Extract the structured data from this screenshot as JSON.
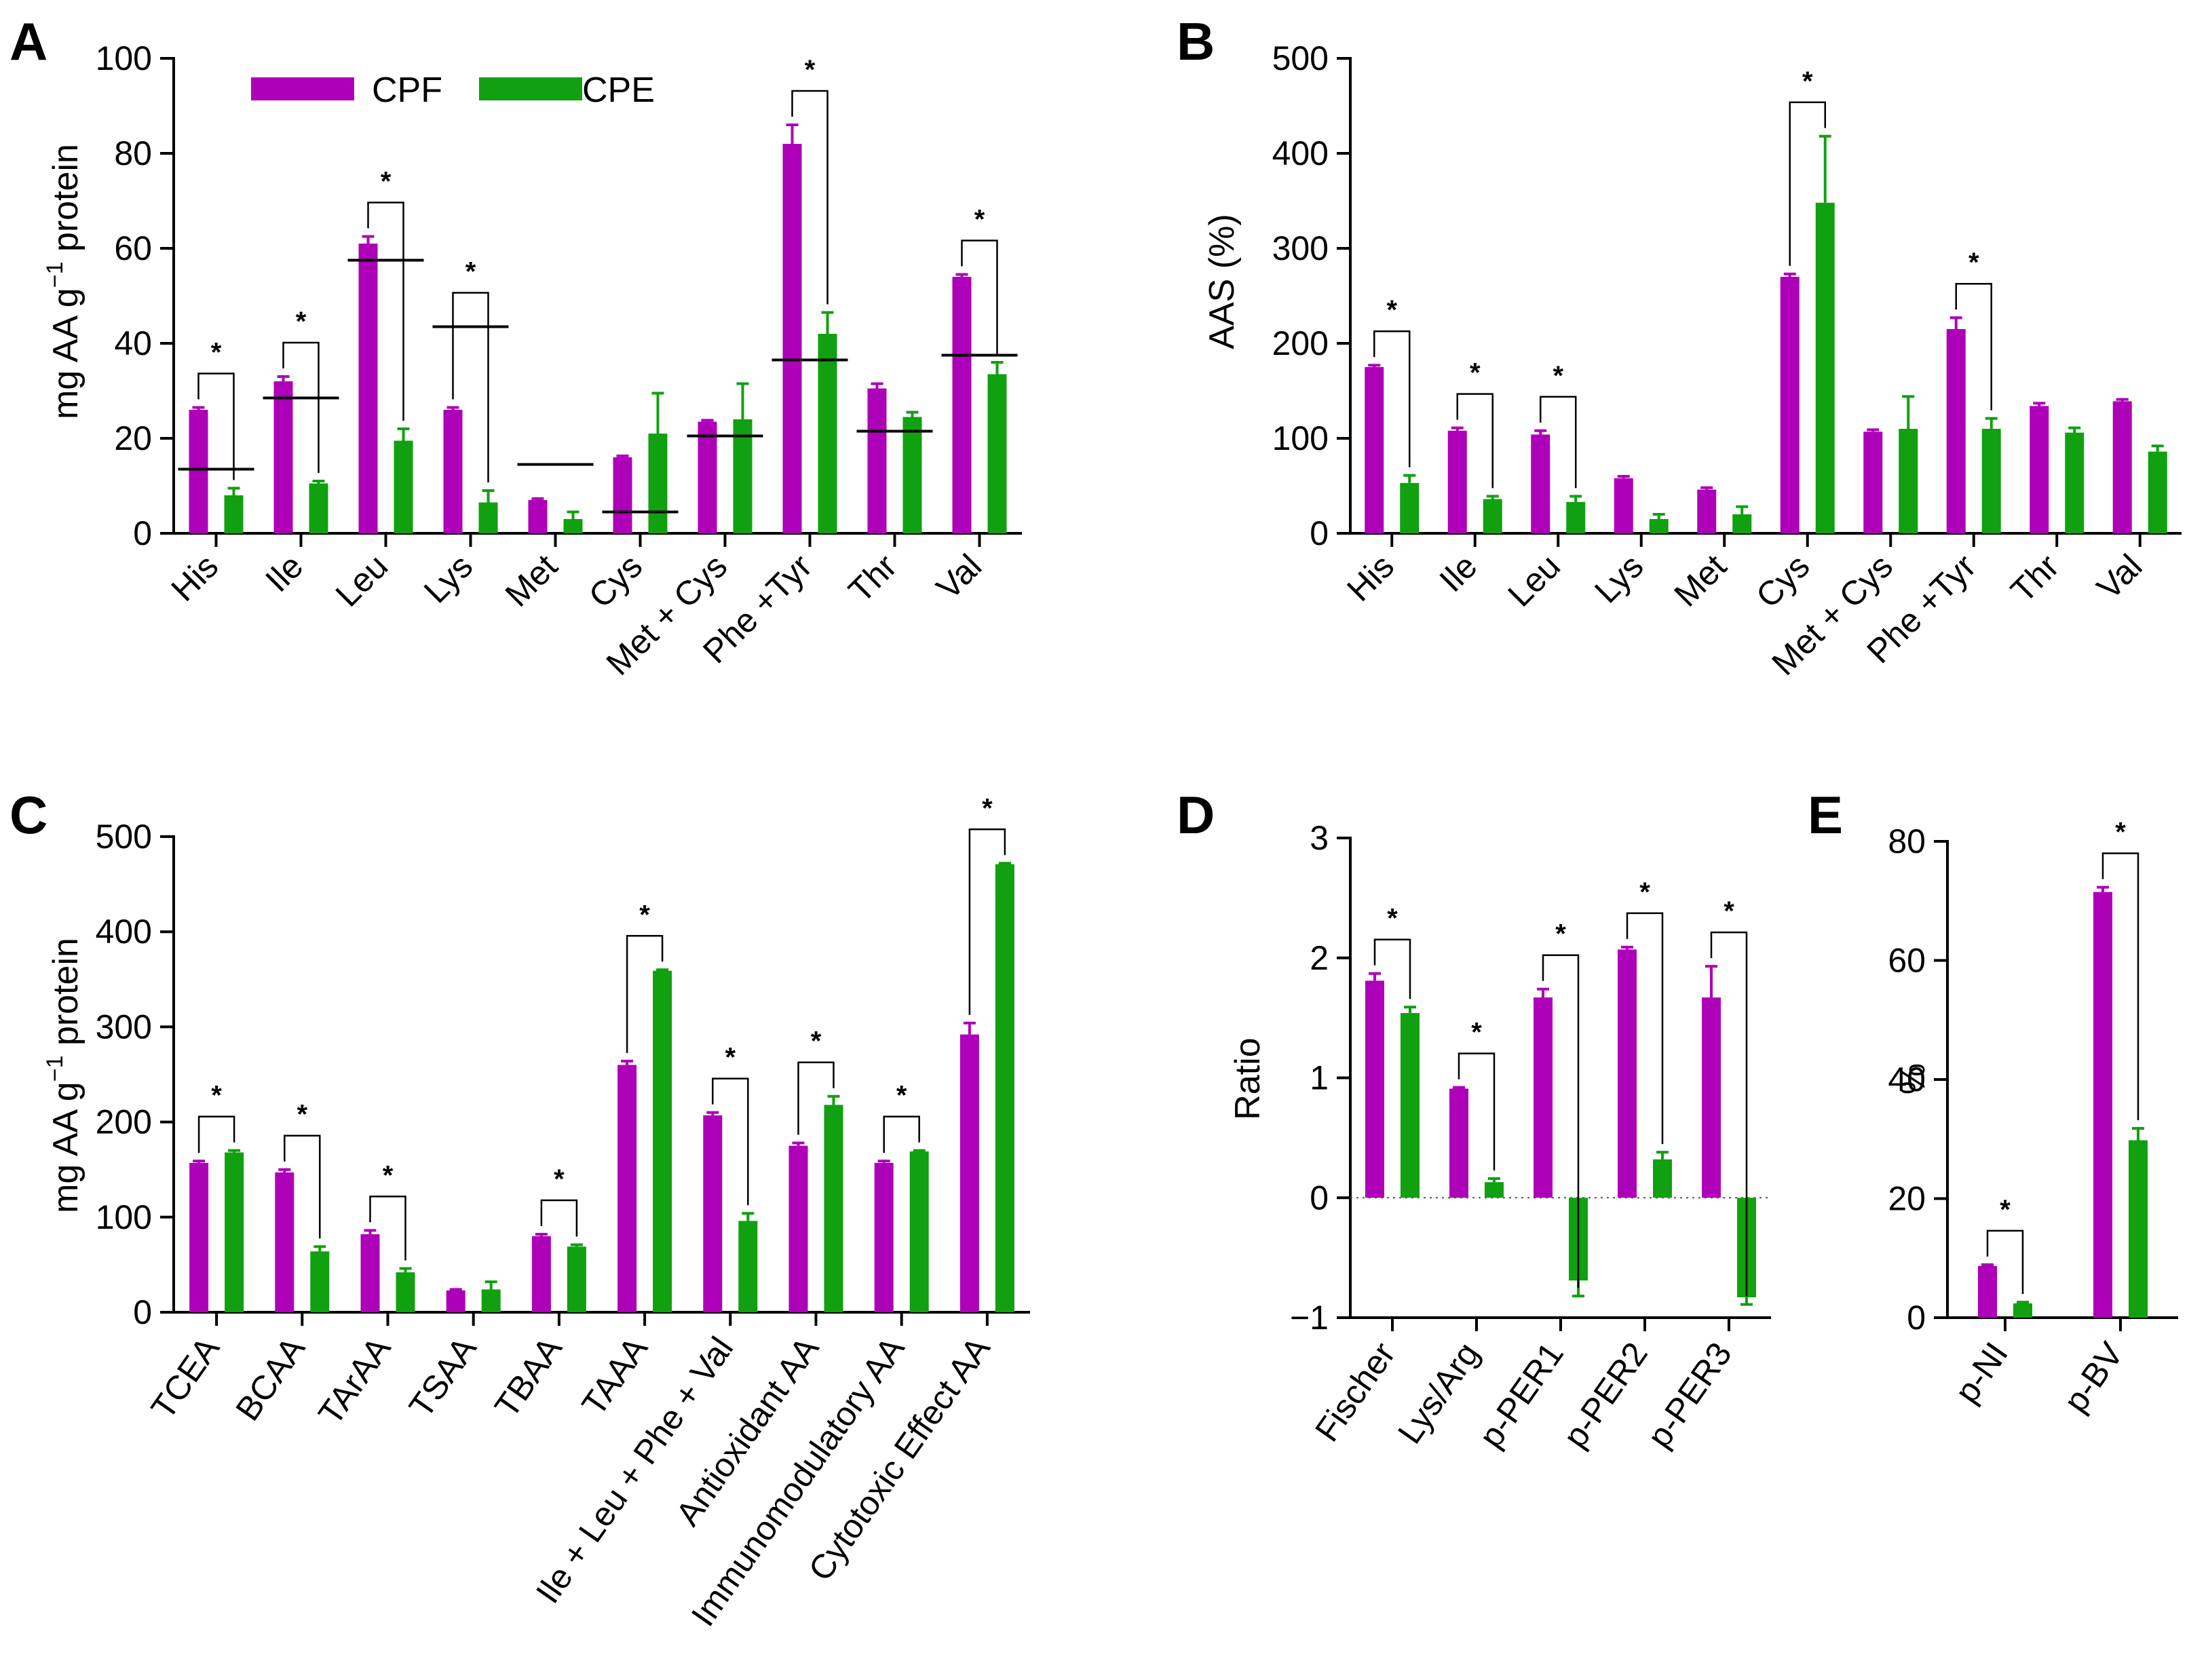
{
  "figure": {
    "colors": {
      "CPF": "#AE00B8",
      "CPE": "#10A010"
    },
    "legend": [
      {
        "label": "CPF",
        "color": "#AE00B8"
      },
      {
        "label": "CPE",
        "color": "#10A010"
      }
    ]
  },
  "chart_data": [
    {
      "panel": "A",
      "type": "bar",
      "ylabel_main": "mg AA g",
      "ylabel_sup": "−1",
      "ylabel_tail": " protein",
      "ylim": [
        0,
        100
      ],
      "yticks": [
        "0",
        "20",
        "40",
        "60",
        "80",
        "100"
      ],
      "categories": [
        "His",
        "Ile",
        "Leu",
        "Lys",
        "Met",
        "Cys",
        "Met + Cys",
        "Phe +Tyr",
        "Thr",
        "Val"
      ],
      "series": [
        {
          "name": "CPF",
          "values": [
            26,
            32,
            61,
            26,
            7,
            16,
            23.5,
            82,
            30.5,
            54
          ],
          "errors": [
            0.5,
            1,
            1.5,
            0.5,
            0.3,
            0.3,
            0.3,
            4,
            1,
            0.5
          ]
        },
        {
          "name": "CPE",
          "values": [
            8,
            10.5,
            19.5,
            6.5,
            3,
            21,
            24,
            42,
            24.5,
            33.5
          ],
          "errors": [
            1.5,
            0.5,
            2.5,
            2.5,
            1.5,
            8.5,
            7.5,
            4.5,
            1,
            2.5
          ]
        }
      ],
      "reference_values": [
        13.5,
        28.5,
        57.5,
        43.5,
        14.5,
        4.5,
        20.5,
        36.5,
        21.5,
        37.5
      ],
      "significance": [
        "*",
        "*",
        "*",
        "*",
        "",
        "",
        "",
        "*",
        "",
        "*"
      ]
    },
    {
      "panel": "B",
      "type": "bar",
      "ylabel": "AAS (%)",
      "ylim": [
        0,
        500
      ],
      "yticks": [
        "0",
        "100",
        "200",
        "300",
        "400",
        "500"
      ],
      "categories": [
        "His",
        "Ile",
        "Leu",
        "Lys",
        "Met",
        "Cys",
        "Met + Cys",
        "Phe +Tyr",
        "Thr",
        "Val"
      ],
      "series": [
        {
          "name": "CPF",
          "values": [
            175,
            108,
            104,
            58,
            46,
            270,
            107,
            215,
            134,
            139
          ],
          "errors": [
            2,
            3,
            4,
            2,
            2,
            3,
            2,
            12,
            3,
            2
          ]
        },
        {
          "name": "CPE",
          "values": [
            53,
            36,
            33,
            15,
            20,
            348,
            110,
            110,
            106,
            86
          ],
          "errors": [
            8,
            3,
            6,
            5,
            8,
            70,
            34,
            11,
            5,
            6
          ]
        }
      ],
      "significance": [
        "*",
        "*",
        "*",
        "",
        "",
        "*",
        "",
        "*",
        "",
        ""
      ]
    },
    {
      "panel": "C",
      "type": "bar",
      "ylabel_main": "mg AA g",
      "ylabel_sup": "−1",
      "ylabel_tail": " protein",
      "ylim": [
        0,
        500
      ],
      "yticks": [
        "0",
        "100",
        "200",
        "300",
        "400",
        "500"
      ],
      "categories": [
        "TCEA",
        "BCAA",
        "TArAA",
        "TSAA",
        "TBAA",
        "TAAA",
        "Ile + Leu + Phe + Val",
        "Antioxidant AA",
        "Immunomodulatory AA",
        "Cytotoxic Effect AA"
      ],
      "series": [
        {
          "name": "CPF",
          "values": [
            157,
            147,
            82,
            23,
            80,
            260,
            207,
            175,
            157,
            292
          ],
          "errors": [
            2,
            3,
            4,
            1,
            2,
            4,
            3,
            3,
            2,
            12
          ]
        },
        {
          "name": "CPE",
          "values": [
            168,
            64,
            42,
            24,
            69,
            359,
            96,
            218,
            169,
            471
          ],
          "errors": [
            2,
            5,
            4,
            8,
            2,
            1,
            8,
            9,
            1,
            1
          ]
        }
      ],
      "significance": [
        "*",
        "*",
        "*",
        "",
        "*",
        "*",
        "*",
        "*",
        "*",
        "*"
      ]
    },
    {
      "panel": "D",
      "type": "bar",
      "ylabel": "Ratio",
      "ylim": [
        -1,
        3
      ],
      "yticks": [
        "−1",
        "0",
        "1",
        "2",
        "3"
      ],
      "yticks_values": [
        -1,
        0,
        1,
        2,
        3
      ],
      "categories": [
        "Fischer",
        "Lys/Arg",
        "p-PER1",
        "p-PER2",
        "p-PER3"
      ],
      "series": [
        {
          "name": "CPF",
          "values": [
            1.81,
            0.91,
            1.67,
            2.07,
            1.67
          ],
          "errors": [
            0.06,
            0.01,
            0.07,
            0.02,
            0.26
          ]
        },
        {
          "name": "CPE",
          "values": [
            1.54,
            0.13,
            -0.69,
            0.32,
            -0.83
          ],
          "errors": [
            0.05,
            0.03,
            0.13,
            0.06,
            0.06
          ]
        }
      ],
      "significance": [
        "*",
        "*",
        "*",
        "*",
        "*"
      ]
    },
    {
      "panel": "E",
      "type": "bar",
      "ylabel": "%",
      "ylim": [
        0,
        80
      ],
      "yticks": [
        "0",
        "20",
        "40",
        "60",
        "80"
      ],
      "categories": [
        "p-NI",
        "p-BV"
      ],
      "series": [
        {
          "name": "CPF",
          "values": [
            8.7,
            71.5
          ],
          "errors": [
            0.2,
            0.8
          ]
        },
        {
          "name": "CPE",
          "values": [
            2.4,
            29.8
          ],
          "errors": [
            0.2,
            2
          ]
        }
      ],
      "significance": [
        "*",
        "*"
      ]
    }
  ]
}
